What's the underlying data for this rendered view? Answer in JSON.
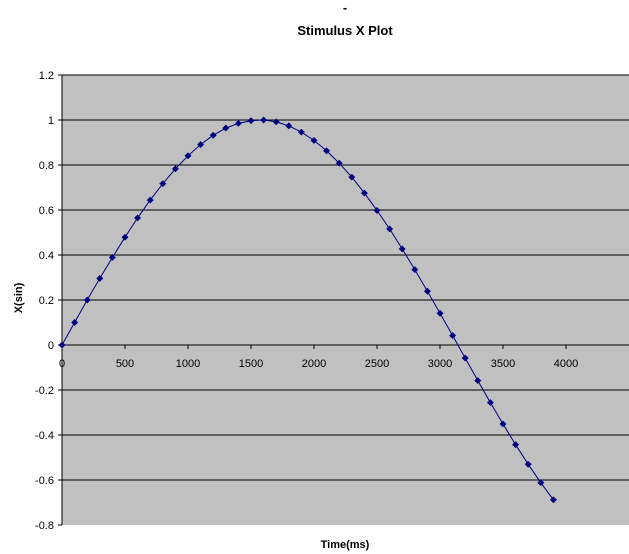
{
  "chart_data": {
    "type": "scatter",
    "title": "Stimulus X Plot",
    "title_mark": "-",
    "xlabel": "Time(ms)",
    "ylabel": "X(sin)",
    "xlim": [
      0,
      4500
    ],
    "ylim": [
      -0.8,
      1.2
    ],
    "x_ticks": [
      0,
      500,
      1000,
      1500,
      2000,
      2500,
      3000,
      3500,
      4000
    ],
    "y_ticks": [
      1.2,
      1,
      0.8,
      0.6,
      0.4,
      0.2,
      0,
      -0.2,
      -0.4,
      -0.6,
      -0.8
    ],
    "grid": "horizontal",
    "legend": "none",
    "series": [
      {
        "marker": "diamond",
        "line": "smooth",
        "color": "#000080",
        "x": [
          0,
          100,
          200,
          300,
          400,
          500,
          600,
          700,
          800,
          900,
          1000,
          1100,
          1200,
          1300,
          1400,
          1500,
          1600,
          1700,
          1800,
          1900,
          2000,
          2100,
          2200,
          2300,
          2400,
          2500,
          2600,
          2700,
          2800,
          2900,
          3000,
          3100,
          3200,
          3300,
          3400,
          3500,
          3600,
          3700,
          3800,
          3900
        ],
        "y": [
          0,
          0.1,
          0.2,
          0.296,
          0.389,
          0.479,
          0.565,
          0.644,
          0.717,
          0.783,
          0.841,
          0.891,
          0.932,
          0.964,
          0.985,
          0.997,
          1.0,
          0.992,
          0.974,
          0.946,
          0.909,
          0.863,
          0.808,
          0.746,
          0.675,
          0.598,
          0.516,
          0.427,
          0.335,
          0.239,
          0.141,
          0.042,
          -0.058,
          -0.158,
          -0.256,
          -0.351,
          -0.443,
          -0.53,
          -0.612,
          -0.688
        ]
      }
    ]
  },
  "colors": {
    "plot_background": "#c0c0c0",
    "gridline": "#000000",
    "series": "#000080"
  }
}
